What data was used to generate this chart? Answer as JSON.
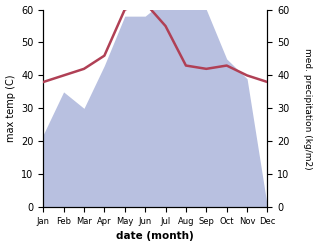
{
  "months": [
    "Jan",
    "Feb",
    "Mar",
    "Apr",
    "May",
    "Jun",
    "Jul",
    "Aug",
    "Sep",
    "Oct",
    "Nov",
    "Dec"
  ],
  "max_temp": [
    38,
    40,
    42,
    46,
    60,
    62,
    55,
    43,
    42,
    43,
    40,
    38
  ],
  "precipitation": [
    22,
    35,
    30,
    43,
    58,
    58,
    63,
    63,
    60,
    45,
    39,
    0
  ],
  "temp_color": "#b04055",
  "precip_fill_color": "#b8c0e0",
  "left_ylim": [
    0,
    60
  ],
  "right_ylim": [
    0,
    60
  ],
  "left_yticks": [
    0,
    10,
    20,
    30,
    40,
    50,
    60
  ],
  "right_yticks": [
    0,
    10,
    20,
    30,
    40,
    50,
    60
  ],
  "xlabel": "date (month)",
  "ylabel_left": "max temp (C)",
  "ylabel_right": "med. precipitation (kg/m2)",
  "bg_color": "#ffffff"
}
